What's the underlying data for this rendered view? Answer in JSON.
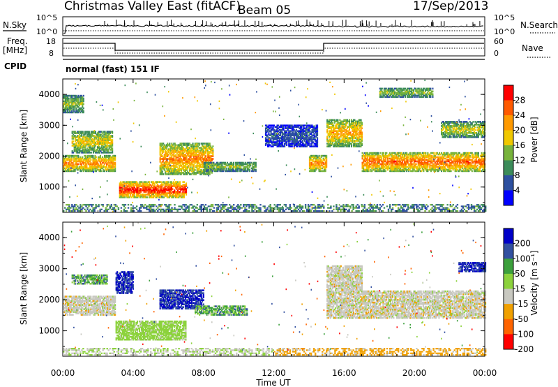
{
  "header": {
    "title": "Christmas Valley East (fitACF)",
    "beam": "Beam 05",
    "date": "17/Sep/2013"
  },
  "top_panels": {
    "nsky_label": "N.Sky",
    "nsearch_label": "N.Search",
    "noise_ticks": [
      "10^5",
      "10^0"
    ],
    "freq_label_1": "Freq.",
    "freq_label_2": "[MHz]",
    "freq_ticks": [
      "18",
      "8"
    ],
    "nave_label": "Nave",
    "nave_ticks": [
      "60",
      "0"
    ],
    "cpid_label": "CPID",
    "cpid_text": "normal (fast) 151 IF"
  },
  "chart_data": [
    {
      "type": "heatmap",
      "name": "power",
      "ylabel": "Slant Range [km]",
      "xlabel": "",
      "yticks": [
        "4000",
        "3000",
        "2000",
        "1000"
      ],
      "ylim": [
        180,
        4500
      ],
      "xlim": [
        0,
        24
      ],
      "colorbar": {
        "label": "Power [dB]",
        "ticks": [
          "28",
          "24",
          "20",
          "16",
          "12",
          "8",
          "4"
        ],
        "colors": [
          "#ff0000",
          "#ff5a00",
          "#ff9a00",
          "#f0c800",
          "#78b43c",
          "#3c8c5a",
          "#2d50a0",
          "#0000ff"
        ]
      },
      "features": [
        {
          "t0": 0.0,
          "t1": 1.2,
          "r0": 3400,
          "r1": 3950,
          "value": 14
        },
        {
          "t0": 0.0,
          "t1": 3.0,
          "r0": 1500,
          "r1": 2000,
          "value": 22
        },
        {
          "t0": 0.5,
          "t1": 2.8,
          "r0": 2100,
          "r1": 2800,
          "value": 17
        },
        {
          "t0": 3.2,
          "t1": 7.0,
          "r0": 650,
          "r1": 1150,
          "value": 28
        },
        {
          "t0": 5.5,
          "t1": 8.5,
          "r0": 1400,
          "r1": 2400,
          "value": 22
        },
        {
          "t0": 8.0,
          "t1": 11.0,
          "r0": 1500,
          "r1": 1800,
          "value": 14
        },
        {
          "t0": 11.5,
          "t1": 14.5,
          "r0": 2300,
          "r1": 3000,
          "value": 6
        },
        {
          "t0": 14.0,
          "t1": 15.0,
          "r0": 1500,
          "r1": 2000,
          "value": 22
        },
        {
          "t0": 15.0,
          "t1": 17.0,
          "r0": 2300,
          "r1": 3200,
          "value": 20
        },
        {
          "t0": 17.0,
          "t1": 24.0,
          "r0": 1500,
          "r1": 2100,
          "value": 24
        },
        {
          "t0": 18.0,
          "t1": 21.0,
          "r0": 3900,
          "r1": 4200,
          "value": 14
        },
        {
          "t0": 21.5,
          "t1": 24.0,
          "r0": 2600,
          "r1": 3100,
          "value": 16
        }
      ]
    },
    {
      "type": "heatmap",
      "name": "velocity",
      "ylabel": "Slant Range [km]",
      "xlabel": "Time UT",
      "xticks": [
        "00:00",
        "04:00",
        "08:00",
        "12:00",
        "16:00",
        "20:00",
        "00:00"
      ],
      "yticks": [
        "4000",
        "3000",
        "2000",
        "1000"
      ],
      "ylim": [
        180,
        4500
      ],
      "xlim": [
        0,
        24
      ],
      "colorbar": {
        "label": "Velocity [m s⁻¹]",
        "ticks": [
          "200",
          "100",
          "50",
          "15",
          "-15",
          "-50",
          "-100",
          "-200"
        ],
        "colors": [
          "#0000c8",
          "#3250a0",
          "#3ca03c",
          "#8cd23c",
          "#c8c8c0",
          "#f0a000",
          "#ff6400",
          "#ff0000"
        ]
      },
      "features": [
        {
          "t0": 0.0,
          "t1": 3.0,
          "r0": 1500,
          "r1": 2100,
          "value": 0
        },
        {
          "t0": 0.5,
          "t1": 2.5,
          "r0": 2500,
          "r1": 2800,
          "value": 60
        },
        {
          "t0": 3.0,
          "t1": 4.0,
          "r0": 2200,
          "r1": 2900,
          "value": 200
        },
        {
          "t0": 3.0,
          "t1": 7.0,
          "r0": 700,
          "r1": 1300,
          "value": 30
        },
        {
          "t0": 5.5,
          "t1": 8.0,
          "r0": 1700,
          "r1": 2300,
          "value": 200
        },
        {
          "t0": 7.5,
          "t1": 10.5,
          "r0": 1500,
          "r1": 1800,
          "value": 60
        },
        {
          "t0": 15.0,
          "t1": 24.0,
          "r0": 1400,
          "r1": 2300,
          "value": 0
        },
        {
          "t0": 15.0,
          "t1": 17.0,
          "r0": 2300,
          "r1": 3100,
          "value": 0
        },
        {
          "t0": 22.5,
          "t1": 24.0,
          "r0": 2900,
          "r1": 3200,
          "value": 200
        }
      ]
    }
  ]
}
